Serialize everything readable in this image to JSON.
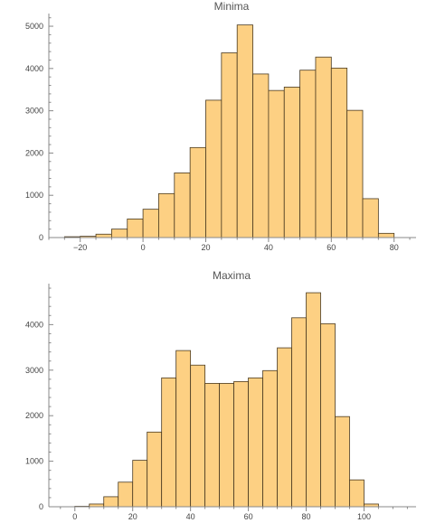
{
  "bar_fill": "#fdd083",
  "chart_data": [
    {
      "type": "bar",
      "title": "Minima",
      "xlabel": "",
      "ylabel": "",
      "bin_width": 5,
      "xlim": [
        -30,
        87
      ],
      "ylim": [
        0,
        5300
      ],
      "xticks": [
        -20,
        0,
        20,
        40,
        60,
        80
      ],
      "xtick_labels": [
        "−20",
        "0",
        "20",
        "40",
        "60",
        "80"
      ],
      "xminor_step": 5,
      "yticks": [
        0,
        1000,
        2000,
        3000,
        4000,
        5000
      ],
      "ytick_labels": [
        "0",
        "1000",
        "2000",
        "3000",
        "4000",
        "5000"
      ],
      "yminor_step": 200,
      "bins": [
        {
          "start": -25,
          "count": 20
        },
        {
          "start": -20,
          "count": 30
        },
        {
          "start": -15,
          "count": 80
        },
        {
          "start": -10,
          "count": 200
        },
        {
          "start": -5,
          "count": 440
        },
        {
          "start": 0,
          "count": 670
        },
        {
          "start": 5,
          "count": 1040
        },
        {
          "start": 10,
          "count": 1530
        },
        {
          "start": 15,
          "count": 2130
        },
        {
          "start": 20,
          "count": 3250
        },
        {
          "start": 25,
          "count": 4370
        },
        {
          "start": 30,
          "count": 5030
        },
        {
          "start": 35,
          "count": 3870
        },
        {
          "start": 40,
          "count": 3480
        },
        {
          "start": 45,
          "count": 3560
        },
        {
          "start": 50,
          "count": 3960
        },
        {
          "start": 55,
          "count": 4270
        },
        {
          "start": 60,
          "count": 4010
        },
        {
          "start": 65,
          "count": 3010
        },
        {
          "start": 70,
          "count": 920
        },
        {
          "start": 75,
          "count": 100
        }
      ]
    },
    {
      "type": "bar",
      "title": "Maxima",
      "xlabel": "",
      "ylabel": "",
      "bin_width": 5,
      "xlim": [
        -9,
        118
      ],
      "ylim": [
        0,
        4900
      ],
      "xticks": [
        0,
        20,
        40,
        60,
        80,
        100
      ],
      "xtick_labels": [
        "0",
        "20",
        "40",
        "60",
        "80",
        "100"
      ],
      "xminor_step": 5,
      "yticks": [
        0,
        1000,
        2000,
        3000,
        4000
      ],
      "ytick_labels": [
        "0",
        "1000",
        "2000",
        "3000",
        "4000"
      ],
      "yminor_step": 200,
      "bins": [
        {
          "start": 0,
          "count": 10
        },
        {
          "start": 5,
          "count": 60
        },
        {
          "start": 10,
          "count": 220
        },
        {
          "start": 15,
          "count": 540
        },
        {
          "start": 20,
          "count": 1020
        },
        {
          "start": 25,
          "count": 1640
        },
        {
          "start": 30,
          "count": 2830
        },
        {
          "start": 35,
          "count": 3430
        },
        {
          "start": 40,
          "count": 3110
        },
        {
          "start": 45,
          "count": 2710
        },
        {
          "start": 50,
          "count": 2710
        },
        {
          "start": 55,
          "count": 2750
        },
        {
          "start": 60,
          "count": 2830
        },
        {
          "start": 65,
          "count": 2990
        },
        {
          "start": 70,
          "count": 3490
        },
        {
          "start": 75,
          "count": 4150
        },
        {
          "start": 80,
          "count": 4700
        },
        {
          "start": 85,
          "count": 4020
        },
        {
          "start": 90,
          "count": 1980
        },
        {
          "start": 95,
          "count": 590
        },
        {
          "start": 100,
          "count": 60
        }
      ]
    }
  ]
}
